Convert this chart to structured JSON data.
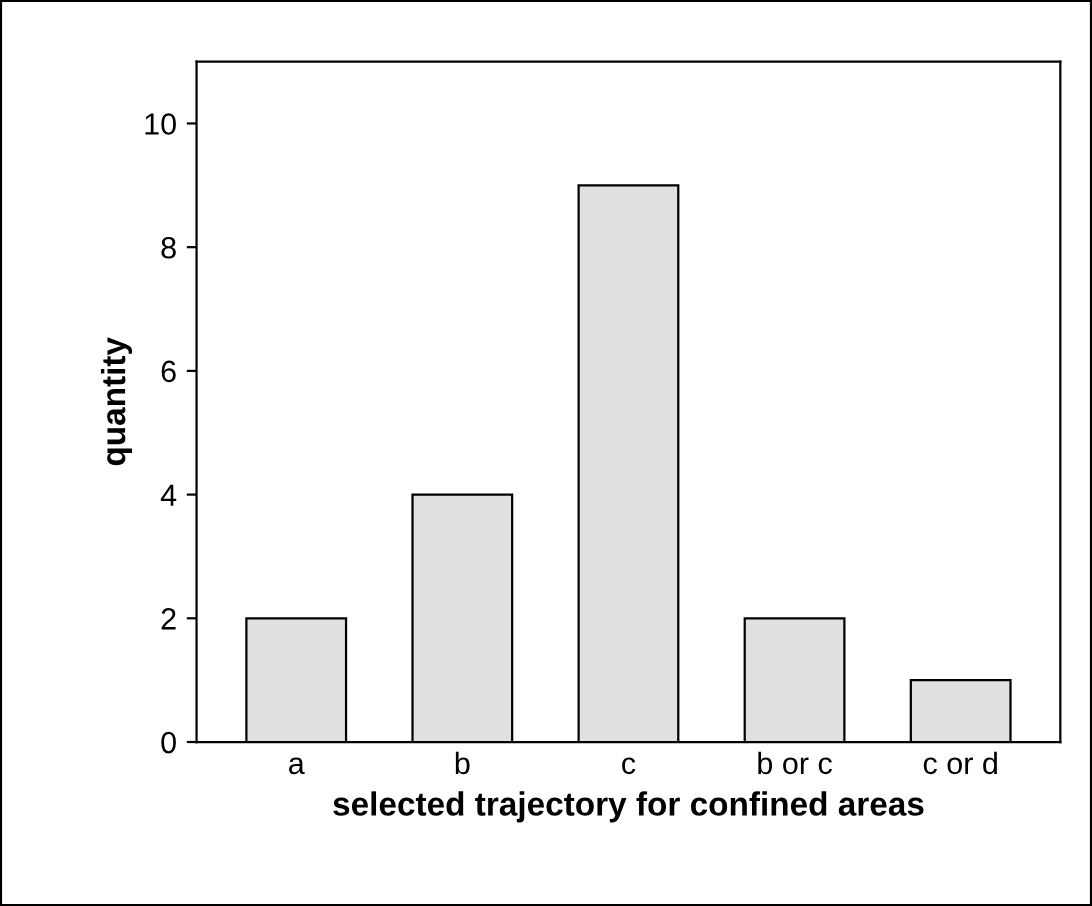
{
  "chart_data": {
    "type": "bar",
    "xlabel": "selected trajectory for confined areas",
    "ylabel": "quantity",
    "categories": [
      "a",
      "b",
      "c",
      "b or c",
      "c or d"
    ],
    "values": [
      2,
      4,
      9,
      2,
      1
    ],
    "color": "#e0e0e0",
    "ylim": [
      0,
      11
    ],
    "yticks": [
      0,
      2,
      4,
      6,
      8,
      10
    ],
    "grid": false,
    "legend": false
  }
}
